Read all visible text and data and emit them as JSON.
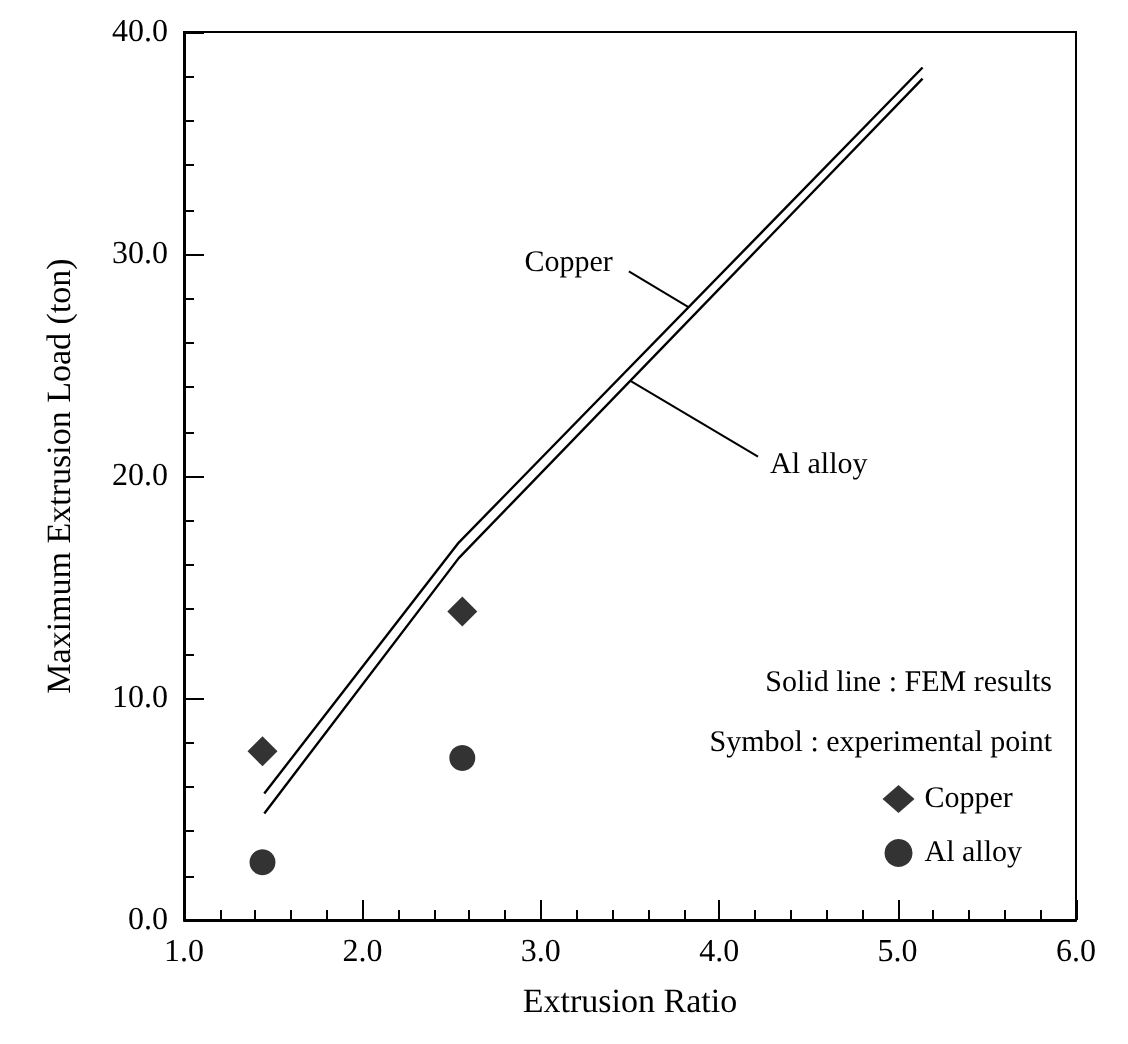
{
  "chart_data": {
    "type": "line",
    "xlabel": "Extrusion Ratio",
    "ylabel": "Maximum Extrusion Load (ton)",
    "xlim": [
      1.0,
      6.0
    ],
    "xticks": [
      {
        "value": 1,
        "label": "1.0"
      },
      {
        "value": 2,
        "label": "2.0"
      },
      {
        "value": 3,
        "label": "3.0"
      },
      {
        "value": 4,
        "label": "4.0"
      },
      {
        "value": 5,
        "label": "5.0"
      },
      {
        "value": 6,
        "label": "6.0"
      }
    ],
    "ylim": [
      0,
      40
    ],
    "yticks": [
      {
        "value": 0,
        "label": "0.0"
      },
      {
        "value": 10,
        "label": "10.0"
      },
      {
        "value": 20,
        "label": "20.0"
      },
      {
        "value": 30,
        "label": "30.0"
      },
      {
        "value": 40,
        "label": "40.0"
      }
    ],
    "series": [
      {
        "color": "#000000",
        "line_style": "solid",
        "x": [
          1.45,
          2.54,
          5.14
        ],
        "values": [
          5.7,
          17.0,
          38.4
        ]
      },
      {
        "color": "#000000",
        "line_style": "solid",
        "x": [
          1.45,
          2.54,
          5.14
        ],
        "values": [
          4.8,
          16.3,
          37.9
        ]
      },
      {
        "type": "scatter",
        "name": "Copper",
        "color": "#000000",
        "marker": "diamond",
        "x": [
          1.44,
          2.56
        ],
        "values": [
          7.6,
          13.9
        ]
      },
      {
        "type": "scatter",
        "name": "Al alloy",
        "color": "#000000",
        "marker": "circle",
        "x": [
          1.44,
          2.56
        ],
        "values": [
          2.6,
          7.3
        ]
      }
    ],
    "annotations": [
      {
        "text": "Copper",
        "x": 3.83,
        "y": 27.6
      },
      {
        "text": "Al alloy",
        "x": 3.5,
        "y": 24.3
      },
      "Solid line : FEM results",
      "Symbol : experimental point"
    ],
    "legend": "bottom right",
    "grid": false
  }
}
